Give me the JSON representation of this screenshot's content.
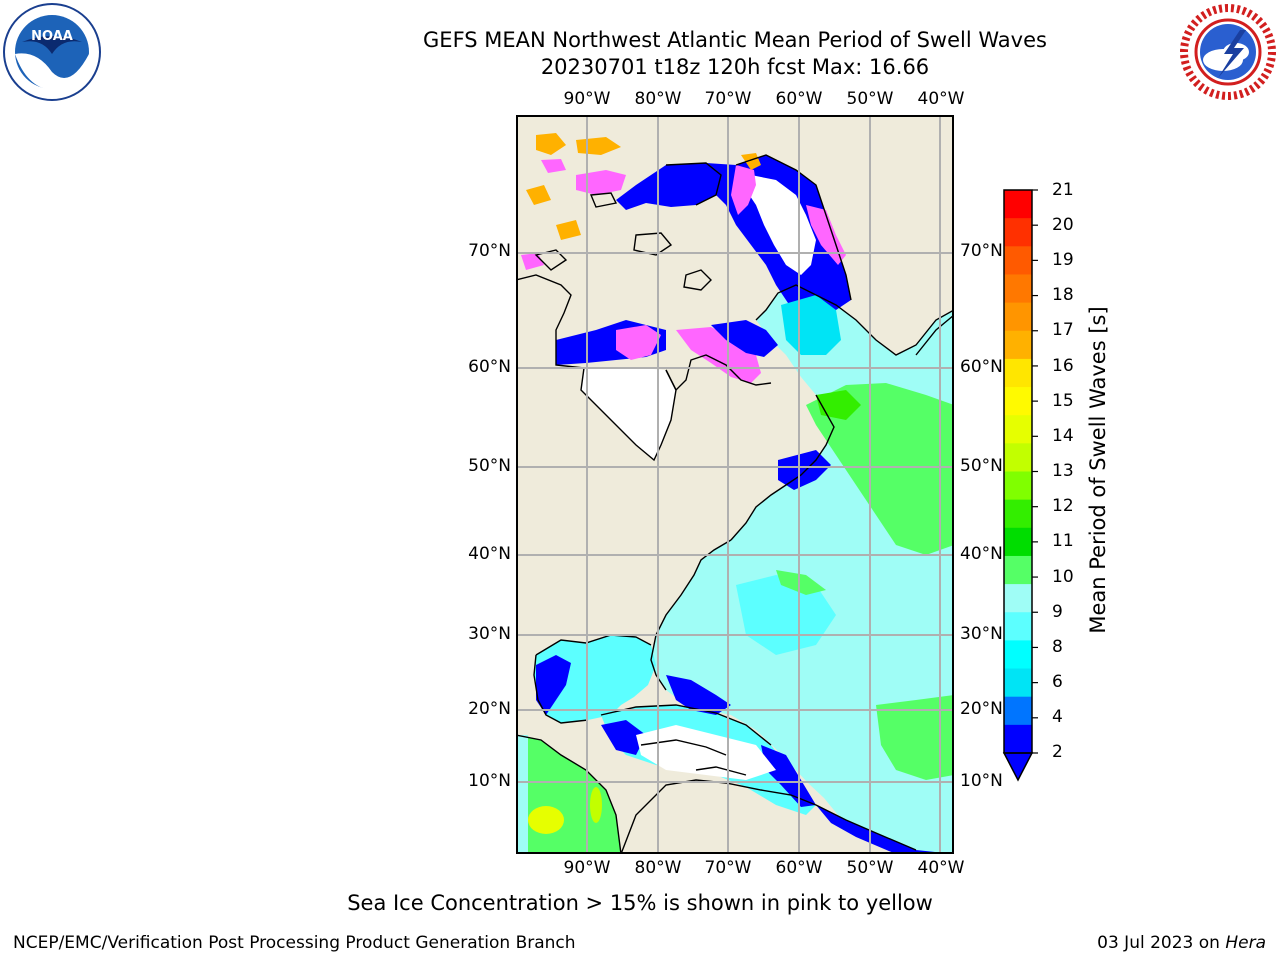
{
  "header": {
    "title_line1": "GEFS MEAN Northwest Atlantic Mean Period of Swell Waves",
    "title_line2": "20230701 t18z 120h fcst   Max: 16.66"
  },
  "logos": {
    "left": "NOAA",
    "right_text": "NATIONAL WEATHER SERVICE"
  },
  "map": {
    "lon_labels": [
      "90°W",
      "80°W",
      "70°W",
      "60°W",
      "50°W",
      "40°W"
    ],
    "lat_labels": [
      "70°N",
      "60°N",
      "50°N",
      "40°N",
      "30°N",
      "20°N",
      "10°N"
    ],
    "colors": {
      "land": "#efebdb",
      "ocean_light": "#9ffdf6",
      "grid": "#b0b0b0"
    }
  },
  "colorbar": {
    "label": "Mean Period of Swell Waves [s]",
    "ticks": [
      "21",
      "20",
      "19",
      "18",
      "17",
      "16",
      "15",
      "14",
      "13",
      "12",
      "11",
      "10",
      "9",
      "8",
      "6",
      "4",
      "2"
    ],
    "colors_top_to_bottom": [
      "#ff0000",
      "#ff3000",
      "#ff5a00",
      "#ff7800",
      "#ff9500",
      "#ffb100",
      "#ffe600",
      "#fffa00",
      "#e6ff00",
      "#c2ff00",
      "#80ff00",
      "#33ee00",
      "#00dd00",
      "#55ff66",
      "#9ffdf6",
      "#5cffff",
      "#00ffff",
      "#00e4f5",
      "#0075ff",
      "#0000ff"
    ]
  },
  "notes": {
    "sea_ice": "Sea Ice Concentration > 15% is shown in pink to yellow"
  },
  "footer": {
    "left": "NCEP/EMC/Verification Post Processing Product Generation Branch",
    "right_date": "03 Jul 2023 on ",
    "right_host": "Hera"
  }
}
